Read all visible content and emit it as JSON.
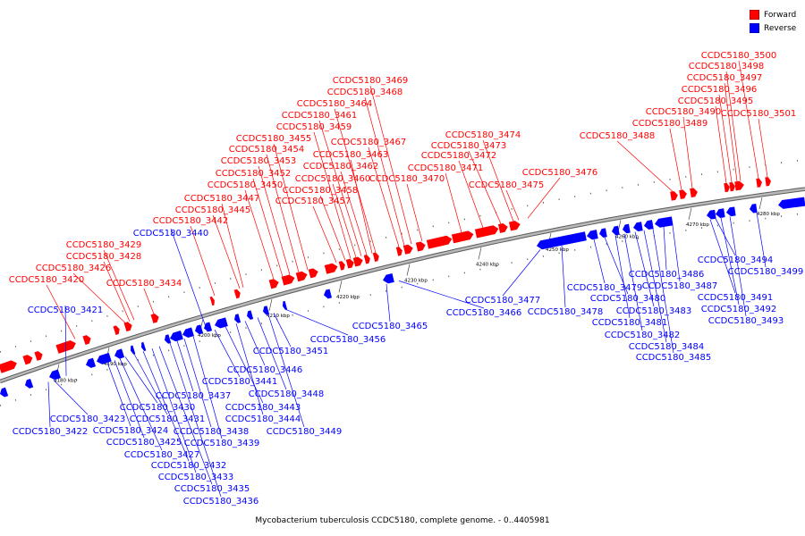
{
  "legend": [
    {
      "label": "Forward",
      "color": "#ff0000"
    },
    {
      "label": "Reverse",
      "color": "#0000ff"
    }
  ],
  "caption": "Mycobacterium tuberculosis CCDC5180, complete genome. - 0..4405981",
  "colors": {
    "forward": "#ff0000",
    "reverse": "#0000ff",
    "backbone": "#8a8a8a"
  },
  "ticks": [
    "4180 kbp",
    "4190 kbp",
    "4200 kbp",
    "4210 kbp",
    "4220 kbp",
    "4230 kbp",
    "4240 kbp",
    "4250 kbp",
    "4260 kbp",
    "4270 kbp",
    "4280 kbp"
  ],
  "forward_labels": [
    "CCDC5180_3420",
    "CCDC5180_3426",
    "CCDC5180_3428",
    "CCDC5180_3429",
    "CCDC5180_3434",
    "CCDC5180_3442",
    "CCDC5180_3445",
    "CCDC5180_3447",
    "CCDC5180_3450",
    "CCDC5180_3452",
    "CCDC5180_3453",
    "CCDC5180_3454",
    "CCDC5180_3455",
    "CCDC5180_3457",
    "CCDC5180_3458",
    "CCDC5180_3459",
    "CCDC5180_3460",
    "CCDC5180_3461",
    "CCDC5180_3462",
    "CCDC5180_3463",
    "CCDC5180_3464",
    "CCDC5180_3467",
    "CCDC5180_3468",
    "CCDC5180_3469",
    "CCDC5180_3470",
    "CCDC5180_3471",
    "CCDC5180_3472",
    "CCDC5180_3473",
    "CCDC5180_3474",
    "CCDC5180_3475",
    "CCDC5180_3476",
    "CCDC5180_3488",
    "CCDC5180_3489",
    "CCDC5180_3490",
    "CCDC5180_3495",
    "CCDC5180_3496",
    "CCDC5180_3497",
    "CCDC5180_3498",
    "CCDC5180_3500",
    "CCDC5180_3501"
  ],
  "reverse_labels": [
    "CCDC5180_3421",
    "CCDC5180_3422",
    "CCDC5180_3423",
    "CCDC5180_3424",
    "CCDC5180_3425",
    "CCDC5180_3427",
    "CCDC5180_3430",
    "CCDC5180_3431",
    "CCDC5180_3432",
    "CCDC5180_3433",
    "CCDC5180_3435",
    "CCDC5180_3436",
    "CCDC5180_3437",
    "CCDC5180_3438",
    "CCDC5180_3439",
    "CCDC5180_3440",
    "CCDC5180_3441",
    "CCDC5180_3443",
    "CCDC5180_3444",
    "CCDC5180_3446",
    "CCDC5180_3448",
    "CCDC5180_3449",
    "CCDC5180_3451",
    "CCDC5180_3456",
    "CCDC5180_3465",
    "CCDC5180_3466",
    "CCDC5180_3477",
    "CCDC5180_3478",
    "CCDC5180_3479",
    "CCDC5180_3480",
    "CCDC5180_3481",
    "CCDC5180_3482",
    "CCDC5180_3483",
    "CCDC5180_3484",
    "CCDC5180_3485",
    "CCDC5180_3486",
    "CCDC5180_3487",
    "CCDC5180_3491",
    "CCDC5180_3492",
    "CCDC5180_3493",
    "CCDC5180_3494",
    "CCDC5180_3499"
  ]
}
